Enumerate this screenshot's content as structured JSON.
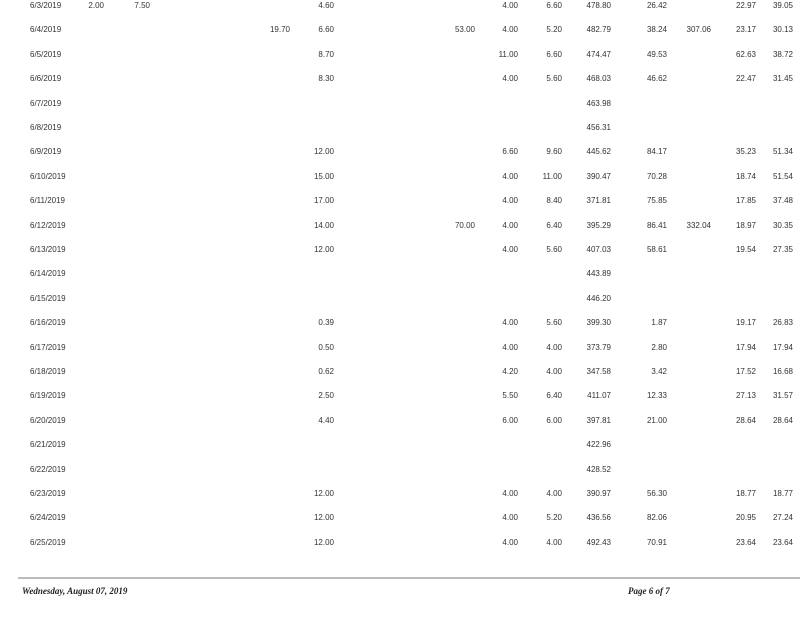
{
  "rows": [
    {
      "date": "6/3/2019",
      "cells": [
        "2.00",
        "7.50",
        "",
        "4.60",
        "",
        "4.00",
        "6.60",
        "478.80",
        "26.42",
        "",
        "22.97",
        "39.05"
      ]
    },
    {
      "date": "6/4/2019",
      "cells": [
        "",
        "",
        "19.70",
        "6.60",
        "53.00",
        "4.00",
        "5.20",
        "482.79",
        "38.24",
        "307.06",
        "23.17",
        "30.13"
      ]
    },
    {
      "date": "6/5/2019",
      "cells": [
        "",
        "",
        "",
        "8.70",
        "",
        "11.00",
        "6.60",
        "474.47",
        "49.53",
        "",
        "62.63",
        "38.72"
      ]
    },
    {
      "date": "6/6/2019",
      "cells": [
        "",
        "",
        "",
        "8.30",
        "",
        "4.00",
        "5.60",
        "468.03",
        "46.62",
        "",
        "22.47",
        "31.45"
      ]
    },
    {
      "date": "6/7/2019",
      "cells": [
        "",
        "",
        "",
        "",
        "",
        "",
        "",
        "463.98",
        "",
        "",
        "",
        ""
      ]
    },
    {
      "date": "6/8/2019",
      "cells": [
        "",
        "",
        "",
        "",
        "",
        "",
        "",
        "456.31",
        "",
        "",
        "",
        ""
      ]
    },
    {
      "date": "6/9/2019",
      "cells": [
        "",
        "",
        "",
        "12.00",
        "",
        "6.60",
        "9.60",
        "445.62",
        "84.17",
        "",
        "35.23",
        "51.34"
      ]
    },
    {
      "date": "6/10/2019",
      "cells": [
        "",
        "",
        "",
        "15.00",
        "",
        "4.00",
        "11.00",
        "390.47",
        "70.28",
        "",
        "18.74",
        "51.54"
      ]
    },
    {
      "date": "6/11/2019",
      "cells": [
        "",
        "",
        "",
        "17.00",
        "",
        "4.00",
        "8.40",
        "371.81",
        "75.85",
        "",
        "17.85",
        "37.48"
      ]
    },
    {
      "date": "6/12/2019",
      "cells": [
        "",
        "",
        "",
        "14.00",
        "70.00",
        "4.00",
        "6.40",
        "395.29",
        "86.41",
        "332.04",
        "18.97",
        "30.35"
      ]
    },
    {
      "date": "6/13/2019",
      "cells": [
        "",
        "",
        "",
        "12.00",
        "",
        "4.00",
        "5.60",
        "407.03",
        "58.61",
        "",
        "19.54",
        "27.35"
      ]
    },
    {
      "date": "6/14/2019",
      "cells": [
        "",
        "",
        "",
        "",
        "",
        "",
        "",
        "443.89",
        "",
        "",
        "",
        ""
      ]
    },
    {
      "date": "6/15/2019",
      "cells": [
        "",
        "",
        "",
        "",
        "",
        "",
        "",
        "446.20",
        "",
        "",
        "",
        ""
      ]
    },
    {
      "date": "6/16/2019",
      "cells": [
        "",
        "",
        "",
        "0.39",
        "",
        "4.00",
        "5.60",
        "399.30",
        "1.87",
        "",
        "19.17",
        "26.83"
      ]
    },
    {
      "date": "6/17/2019",
      "cells": [
        "",
        "",
        "",
        "0.50",
        "",
        "4.00",
        "4.00",
        "373.79",
        "2.80",
        "",
        "17.94",
        "17.94"
      ]
    },
    {
      "date": "6/18/2019",
      "cells": [
        "",
        "",
        "",
        "0.62",
        "",
        "4.20",
        "4.00",
        "347.58",
        "3.42",
        "",
        "17.52",
        "16.68"
      ]
    },
    {
      "date": "6/19/2019",
      "cells": [
        "",
        "",
        "",
        "2.50",
        "",
        "5.50",
        "6.40",
        "411.07",
        "12.33",
        "",
        "27.13",
        "31.57"
      ]
    },
    {
      "date": "6/20/2019",
      "cells": [
        "",
        "",
        "",
        "4.40",
        "",
        "6.00",
        "6.00",
        "397.81",
        "21.00",
        "",
        "28.64",
        "28.64"
      ]
    },
    {
      "date": "6/21/2019",
      "cells": [
        "",
        "",
        "",
        "",
        "",
        "",
        "",
        "422.96",
        "",
        "",
        "",
        ""
      ]
    },
    {
      "date": "6/22/2019",
      "cells": [
        "",
        "",
        "",
        "",
        "",
        "",
        "",
        "428.52",
        "",
        "",
        "",
        ""
      ]
    },
    {
      "date": "6/23/2019",
      "cells": [
        "",
        "",
        "",
        "12.00",
        "",
        "4.00",
        "4.00",
        "390.97",
        "56.30",
        "",
        "18.77",
        "18.77"
      ]
    },
    {
      "date": "6/24/2019",
      "cells": [
        "",
        "",
        "",
        "12.00",
        "",
        "4.00",
        "5.20",
        "436.56",
        "82.06",
        "",
        "20.95",
        "27.24"
      ]
    },
    {
      "date": "6/25/2019",
      "cells": [
        "",
        "",
        "",
        "12.00",
        "",
        "4.00",
        "4.00",
        "492.43",
        "70.91",
        "",
        "23.64",
        "23.64"
      ]
    }
  ],
  "footer": {
    "date": "Wednesday, August 07, 2019",
    "page": "Page 6 of 7"
  }
}
